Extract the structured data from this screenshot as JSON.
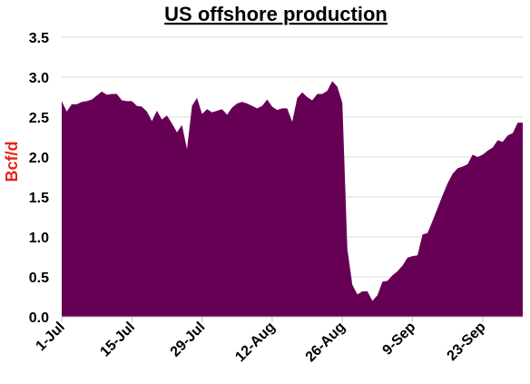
{
  "chart_data": {
    "type": "area",
    "title": "US offshore production",
    "ylabel": "Bcf/d",
    "xlabel": "",
    "ylim": [
      0,
      3.5
    ],
    "ytick_values": [
      0,
      0.5,
      1,
      1.5,
      2,
      2.5,
      3,
      3.5
    ],
    "yticks": [
      "0.0",
      "0.5",
      "1.0",
      "1.5",
      "2.0",
      "2.5",
      "3.0",
      "3.5"
    ],
    "x_start": "2020-07-01",
    "x_end": "2020-10-01",
    "xticks": [
      {
        "date": "2020-07-01",
        "label": "1-Jul"
      },
      {
        "date": "2020-07-15",
        "label": "15-Jul"
      },
      {
        "date": "2020-07-29",
        "label": "29-Jul"
      },
      {
        "date": "2020-08-12",
        "label": "12-Aug"
      },
      {
        "date": "2020-08-26",
        "label": "26-Aug"
      },
      {
        "date": "2020-09-09",
        "label": "9-Sep"
      },
      {
        "date": "2020-09-23",
        "label": "23-Sep"
      }
    ],
    "grid": true,
    "legend": false,
    "colors": {
      "area": "#660055",
      "title": "#000000",
      "ylabel": "#e8201c",
      "grid": "#d9d9d9"
    },
    "series": [
      {
        "x": [
          "2020-07-01",
          "2020-07-02",
          "2020-07-03",
          "2020-07-04",
          "2020-07-05",
          "2020-07-06",
          "2020-07-07",
          "2020-07-08",
          "2020-07-09",
          "2020-07-10",
          "2020-07-11",
          "2020-07-12",
          "2020-07-13",
          "2020-07-14",
          "2020-07-15",
          "2020-07-16",
          "2020-07-17",
          "2020-07-18",
          "2020-07-19",
          "2020-07-20",
          "2020-07-21",
          "2020-07-22",
          "2020-07-23",
          "2020-07-24",
          "2020-07-25",
          "2020-07-26",
          "2020-07-27",
          "2020-07-28",
          "2020-07-29",
          "2020-07-30",
          "2020-07-31",
          "2020-08-01",
          "2020-08-02",
          "2020-08-03",
          "2020-08-04",
          "2020-08-05",
          "2020-08-06",
          "2020-08-07",
          "2020-08-08",
          "2020-08-09",
          "2020-08-10",
          "2020-08-11",
          "2020-08-12",
          "2020-08-13",
          "2020-08-14",
          "2020-08-15",
          "2020-08-16",
          "2020-08-17",
          "2020-08-18",
          "2020-08-19",
          "2020-08-20",
          "2020-08-21",
          "2020-08-22",
          "2020-08-23",
          "2020-08-24",
          "2020-08-25",
          "2020-08-26",
          "2020-08-27",
          "2020-08-28",
          "2020-08-29",
          "2020-08-30",
          "2020-08-31",
          "2020-09-01",
          "2020-09-02",
          "2020-09-03",
          "2020-09-04",
          "2020-09-05",
          "2020-09-06",
          "2020-09-07",
          "2020-09-08",
          "2020-09-09",
          "2020-09-10",
          "2020-09-11",
          "2020-09-12",
          "2020-09-13",
          "2020-09-14",
          "2020-09-15",
          "2020-09-16",
          "2020-09-17",
          "2020-09-18",
          "2020-09-19",
          "2020-09-20",
          "2020-09-21",
          "2020-09-22",
          "2020-09-23",
          "2020-09-24",
          "2020-09-25",
          "2020-09-26",
          "2020-09-27",
          "2020-09-28",
          "2020-09-29",
          "2020-09-30",
          "2020-10-01"
        ],
        "values": [
          2.7,
          2.57,
          2.66,
          2.66,
          2.69,
          2.7,
          2.72,
          2.77,
          2.82,
          2.78,
          2.79,
          2.79,
          2.71,
          2.7,
          2.7,
          2.64,
          2.63,
          2.57,
          2.45,
          2.58,
          2.47,
          2.52,
          2.42,
          2.31,
          2.4,
          2.1,
          2.64,
          2.74,
          2.54,
          2.6,
          2.56,
          2.58,
          2.6,
          2.53,
          2.62,
          2.67,
          2.69,
          2.67,
          2.64,
          2.61,
          2.64,
          2.72,
          2.63,
          2.59,
          2.61,
          2.61,
          2.44,
          2.74,
          2.81,
          2.75,
          2.71,
          2.79,
          2.79,
          2.83,
          2.95,
          2.88,
          2.68,
          0.85,
          0.4,
          0.28,
          0.32,
          0.32,
          0.2,
          0.27,
          0.44,
          0.45,
          0.52,
          0.57,
          0.64,
          0.74,
          0.76,
          0.77,
          1.03,
          1.05,
          1.2,
          1.36,
          1.52,
          1.67,
          1.79,
          1.86,
          1.88,
          1.91,
          2.03,
          2.0,
          2.03,
          2.08,
          2.12,
          2.21,
          2.19,
          2.27,
          2.3,
          2.43,
          2.43
        ]
      }
    ]
  }
}
